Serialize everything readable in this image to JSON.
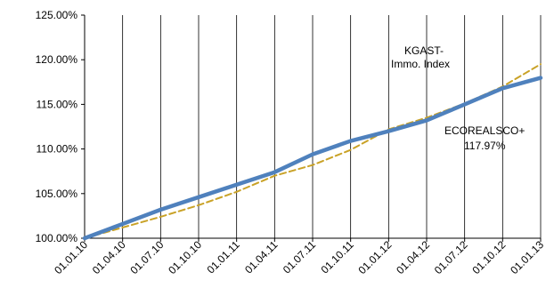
{
  "chart_data": {
    "type": "line",
    "categories": [
      "01.01.10",
      "01.04.10",
      "01.07.10",
      "01.10.10",
      "01.01.11",
      "01.04.11",
      "01.07.11",
      "01.10.11",
      "01.01.12",
      "01.04.12",
      "01.07.12",
      "01.10.12",
      "01.01.13"
    ],
    "y_ticks": [
      "100.00%",
      "105.00%",
      "110.00%",
      "115.00%",
      "120.00%",
      "125.00%"
    ],
    "ylim": [
      100,
      125
    ],
    "grid": {
      "vertical": true,
      "horizontal": false
    },
    "series": [
      {
        "name": "ECOREALSCO+",
        "style": "solid",
        "color": "#4f81bd",
        "values": [
          100.0,
          101.6,
          103.2,
          104.6,
          106.0,
          107.4,
          109.4,
          110.9,
          112.0,
          113.2,
          115.0,
          116.8,
          117.97
        ]
      },
      {
        "name": "KGAST-Immo. Index",
        "style": "dashed",
        "color": "#c9a227",
        "values": [
          100.0,
          101.2,
          102.4,
          103.7,
          105.2,
          107.0,
          108.2,
          109.9,
          112.2,
          113.5,
          115.1,
          117.0,
          119.5
        ]
      }
    ],
    "annotations": [
      {
        "id": "kgast",
        "lines": [
          "KGAST-",
          "Immo. Index"
        ]
      },
      {
        "id": "ecoreal",
        "lines": [
          "ECOREALSCO+",
          "117.97%"
        ]
      }
    ]
  }
}
